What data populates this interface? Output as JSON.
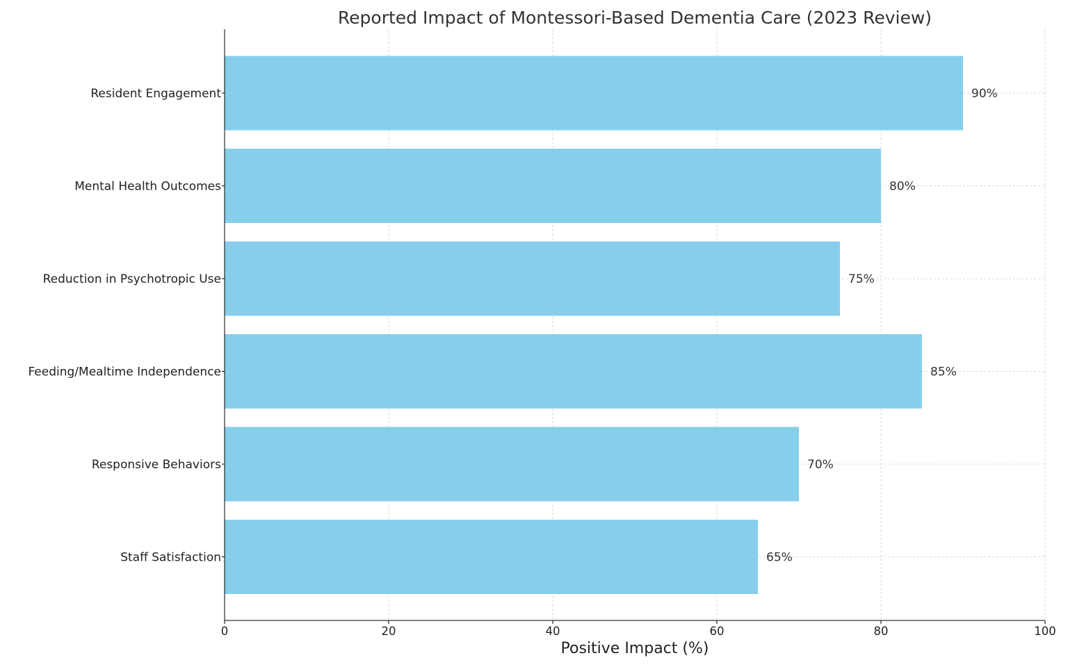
{
  "chart_data": {
    "type": "bar",
    "orientation": "horizontal",
    "title": "Reported Impact of Montessori-Based Dementia Care (2023 Review)",
    "xlabel": "Positive Impact (%)",
    "ylabel": "",
    "xlim": [
      0,
      100
    ],
    "xticks": [
      0,
      20,
      40,
      60,
      80,
      100
    ],
    "categories": [
      "Resident Engagement",
      "Mental Health Outcomes",
      "Reduction in Psychotropic Use",
      "Feeding/Mealtime Independence",
      "Responsive Behaviors",
      "Staff Satisfaction"
    ],
    "values": [
      90,
      80,
      75,
      85,
      70,
      65
    ],
    "data_labels": [
      "90%",
      "80%",
      "75%",
      "85%",
      "70%",
      "65%"
    ],
    "bar_color": "#87ceeb",
    "grid": true,
    "grid_style": "dashed"
  }
}
